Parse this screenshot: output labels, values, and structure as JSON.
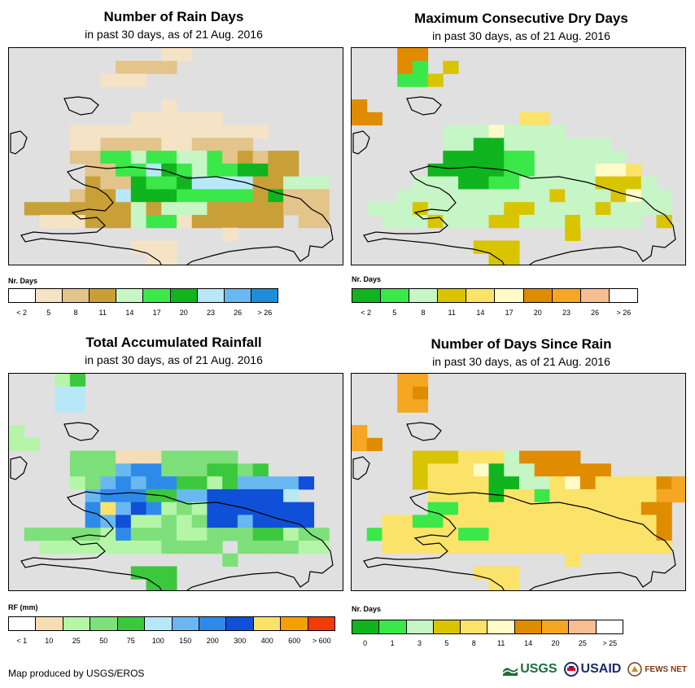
{
  "panels": [
    {
      "id": "rain-days",
      "title": "Number of Rain Days",
      "subtitle": "in past 30 days, as of 21 Aug. 2016",
      "legend_title": "Nr. Days",
      "legend_colors": [
        "#ffffff",
        "#f5e3c6",
        "#e3c48a",
        "#c9a038",
        "#c6f5c6",
        "#3ae84a",
        "#10b41e",
        "#b8e8f8",
        "#6ab8f2",
        "#1e8ed8"
      ],
      "legend_labels": [
        "< 2",
        "5",
        "8",
        "11",
        "14",
        "17",
        "20",
        "23",
        "26",
        "> 26"
      ],
      "cell_colors": [
        "#f5e3c6",
        "#e3c48a",
        "#c9a038",
        "#c6f5c6",
        "#3ae84a",
        "#10b41e",
        "#b8e8f8"
      ],
      "grid": [
        "..........aa..........",
        ".......bbbb...........",
        "......aaa.............",
        "......................",
        "..........a...........",
        "........aaaaaa........",
        "....aaaaaaaaaaaaa.....",
        "....aabbbbaabbbb......",
        "....bbeedeeddebcbcc...",
        ".....bbeegfedeeffcc...",
        ".....cbbfeefggggccddd.",
        "....bccgfffeeeeecfbbb.",
        ".cccccccdcdddcccccbbb.",
        "..aaacccdeeacccccc.bb.",
        "..............a.......",
        "........aaa...........",
        ".........aa..........."
      ]
    },
    {
      "id": "dry-days",
      "title": "Maximum Consecutive Dry Days",
      "subtitle": "in past 30 days, as of 21 Aug. 2016",
      "legend_title": "Nr. Days",
      "legend_colors": [
        "#10b41e",
        "#3ae84a",
        "#c6f5c6",
        "#d9c400",
        "#fbe36a",
        "#fffbc8",
        "#e08c00",
        "#f5a623",
        "#f8bd90",
        "#ffffff"
      ],
      "legend_labels": [
        "< 2",
        "5",
        "8",
        "11",
        "14",
        "17",
        "20",
        "23",
        "26",
        "> 26"
      ],
      "cell_colors": [
        "#10b41e",
        "#3ae84a",
        "#c6f5c6",
        "#d9c400",
        "#fbe36a",
        "#fffbc8",
        "#e08c00",
        "#f5a623"
      ],
      "grid": [
        "...gg.................",
        "...gb.d...............",
        "...bbd................",
        "......................",
        "g.....................",
        "gg.........ee.........",
        "......cccfcccc........",
        "......ccaaccccccc.....",
        "......aaaabbcccccc....",
        ".....aaaaabbccccffe...",
        "....cccaabbcccccdddc..",
        "...ccccccccccdcccdfcc.",
        ".cccdcccccddccccdcccc.",
        "..cccdcccddcccdcccc.d.",
        "..............d.......",
        "........ddd...........",
        ".........dd..........."
      ]
    },
    {
      "id": "rainfall",
      "title": "Total Accumulated Rainfall",
      "subtitle": "in past 30 days, as of 21 Aug. 2016",
      "legend_title": "RF (mm)",
      "legend_colors": [
        "#ffffff",
        "#f5deb3",
        "#b4f5a8",
        "#7de07a",
        "#3cc83c",
        "#b8e8f8",
        "#6ab8f2",
        "#2e8ae8",
        "#1050d8",
        "#fbe36a",
        "#f5a000",
        "#f03c00"
      ],
      "legend_labels": [
        "< 1",
        "10",
        "25",
        "50",
        "75",
        "100",
        "150",
        "200",
        "300",
        "400",
        "600",
        "> 600"
      ],
      "cell_colors": [
        "#f5deb3",
        "#b4f5a8",
        "#7de07a",
        "#3cc83c",
        "#b8e8f8",
        "#6ab8f2",
        "#2e8ae8",
        "#1050d8",
        "#fbe36a"
      ],
      "grid": [
        "...bd.................",
        "...ee.................",
        "...ee.................",
        "......................",
        "b.....................",
        "bb....................",
        "....cccaaaccccc.......",
        "....cccfggcccddcd.....",
        "....bcfgfggddbdffffh..",
        ".....fgggddffhhhhhe...",
        ".....gifhgbcbhhhhhhh..",
        ".....gfhbbcbchhfhhhh..",
        ".cccccbgcccbbcccddbcc.",
        "..bbbbbbbbcccc.ccccbb.",
        "..............c.......",
        "........ddd...........",
        ".........dd..........."
      ]
    },
    {
      "id": "days-since-rain",
      "title": "Number of Days Since Rain",
      "subtitle": "in past 30 days, as of 21 Aug. 2016",
      "legend_title": "Nr. Days",
      "legend_colors": [
        "#10b41e",
        "#3ae84a",
        "#c6f5c6",
        "#d9c400",
        "#fbe36a",
        "#fffbc8",
        "#e08c00",
        "#f5a623",
        "#f8bd90",
        "#ffffff"
      ],
      "legend_labels": [
        "0",
        "1",
        "3",
        "5",
        "8",
        "11",
        "14",
        "20",
        "25",
        "> 25"
      ],
      "cell_colors": [
        "#10b41e",
        "#3ae84a",
        "#c6f5c6",
        "#d9c400",
        "#fbe36a",
        "#fffbc8",
        "#e08c00",
        "#f5a623"
      ],
      "grid": [
        "...hh.................",
        "...hg.................",
        "...hh.................",
        "......................",
        "h.....................",
        "hg....................",
        "....dddeeecgggg.......",
        "....deeefaccggggg.....",
        "....deeeeaaccefgeeeegh",
        ".....eeeeaeebeeeeeeehh",
        ".....bbeeeeeeeeeeeegg.",
        "..eebbeeeeeeeeeeeeeeg.",
        ".beeeeebbeeeeeeeeeeeg.",
        "..eeeeeeeeeeeeeeeeeee.",
        "..............e.......",
        "........eee...........",
        ".........ee..........."
      ]
    }
  ],
  "footer": {
    "credit": "Map produced by USGS/EROS",
    "logos": [
      "USGS",
      "USAID",
      "FEWS NET"
    ]
  },
  "icons": {
    "usgs": "usgs-logo-icon",
    "usaid": "usaid-seal-icon",
    "fews": "fews-net-logo-icon"
  }
}
